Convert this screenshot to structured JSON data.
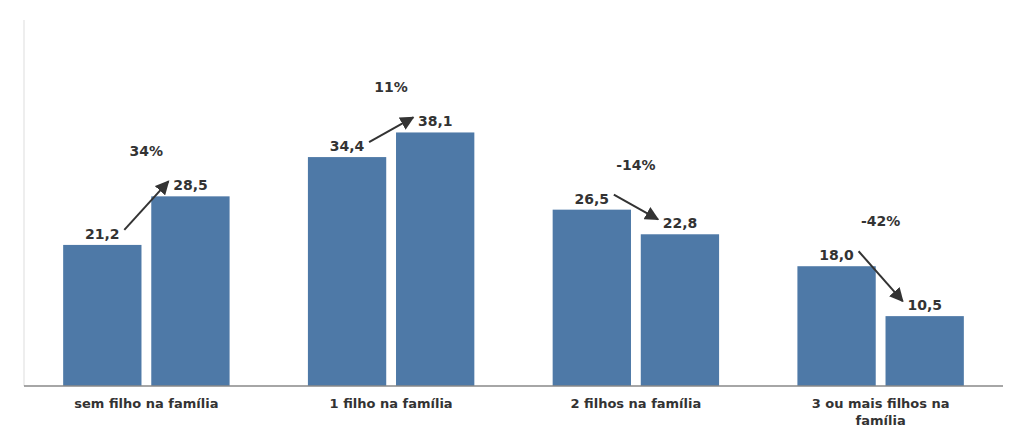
{
  "chart_data": {
    "type": "bar",
    "categories": [
      "sem filho na família",
      "1 filho na família",
      "2 filhos na família",
      "3 ou mais filhos na\nfamília"
    ],
    "series": [
      {
        "values": [
          21.2,
          34.4,
          26.5,
          18.0
        ],
        "value_labels": [
          "21,2",
          "34,4",
          "26,5",
          "18,0"
        ]
      },
      {
        "values": [
          28.5,
          38.1,
          22.8,
          10.5
        ],
        "value_labels": [
          "28,5",
          "38,1",
          "22,8",
          "10,5"
        ]
      }
    ],
    "ylim": [
      0,
      55
    ],
    "data_labels": true,
    "tick_labels": "x",
    "annotations": [
      "34%",
      "11%",
      "-14%",
      "-42%"
    ]
  }
}
